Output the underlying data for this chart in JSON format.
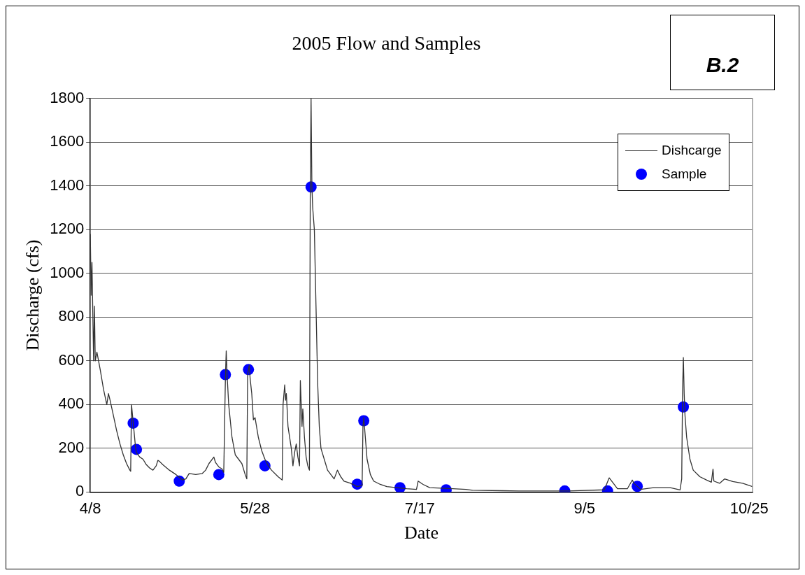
{
  "chart_data": {
    "type": "line",
    "title": "2005 Flow and Samples",
    "xlabel": "Date",
    "ylabel": "Discharge (cfs)",
    "annotations": [
      "B.2"
    ],
    "xlim": [
      "2005-04-08",
      "2005-10-26"
    ],
    "xticks": [
      {
        "value": "2005-04-08",
        "label": "4/8"
      },
      {
        "value": "2005-05-28",
        "label": "5/28"
      },
      {
        "value": "2005-07-17",
        "label": "7/17"
      },
      {
        "value": "2005-09-05",
        "label": "9/5"
      },
      {
        "value": "2005-10-25",
        "label": "10/25"
      }
    ],
    "ylim": [
      0,
      1800
    ],
    "yticks": [
      0,
      200,
      400,
      600,
      800,
      1000,
      1200,
      1400,
      1600,
      1800
    ],
    "grid": "y",
    "legend": "top right",
    "series": [
      {
        "name": "Dishcarge",
        "type": "line",
        "color": "#333333",
        "marker": "none",
        "line_style": "solid",
        "x": [
          "2005-04-08",
          "2005-04-08T06:00",
          "2005-04-08T12:00",
          "2005-04-09",
          "2005-04-09T06:00",
          "2005-04-09T12:00",
          "2005-04-10",
          "2005-04-11",
          "2005-04-12",
          "2005-04-13",
          "2005-04-13T12:00",
          "2005-04-14",
          "2005-04-15",
          "2005-04-16",
          "2005-04-17",
          "2005-04-18",
          "2005-04-19",
          "2005-04-20",
          "2005-04-20T06:00",
          "2005-04-20T12:00",
          "2005-04-21",
          "2005-04-21T18:00",
          "2005-04-22",
          "2005-04-23",
          "2005-04-24",
          "2005-04-25",
          "2005-04-26",
          "2005-04-27",
          "2005-04-28",
          "2005-04-28T12:00",
          "2005-04-29",
          "2005-04-30",
          "2005-05-02",
          "2005-05-04",
          "2005-05-06",
          "2005-05-07",
          "2005-05-08",
          "2005-05-10",
          "2005-05-12",
          "2005-05-13",
          "2005-05-14",
          "2005-05-15T12:00",
          "2005-05-16",
          "2005-05-17",
          "2005-05-18",
          "2005-05-18T12:00",
          "2005-05-18T18:00",
          "2005-05-19",
          "2005-05-19T06:00",
          "2005-05-19T12:00",
          "2005-05-20",
          "2005-05-21",
          "2005-05-22",
          "2005-05-23",
          "2005-05-24",
          "2005-05-25",
          "2005-05-25T12:00",
          "2005-05-25T18:00",
          "2005-05-26T06:00",
          "2005-05-26T12:00",
          "2005-05-27",
          "2005-05-27T12:00",
          "2005-05-28",
          "2005-05-29",
          "2005-05-30",
          "2005-05-31",
          "2005-06-01",
          "2005-06-02",
          "2005-06-04",
          "2005-06-05T06:00",
          "2005-06-05T12:00",
          "2005-06-06",
          "2005-06-06T06:00",
          "2005-06-06T12:00",
          "2005-06-07",
          "2005-06-08",
          "2005-06-08T12:00",
          "2005-06-09",
          "2005-06-09T12:00",
          "2005-06-10",
          "2005-06-10T12:00",
          "2005-06-10T18:00",
          "2005-06-11T06:00",
          "2005-06-11T12:00",
          "2005-06-12",
          "2005-06-12T12:00",
          "2005-06-13",
          "2005-06-13T12:00",
          "2005-06-13T18:00",
          "2005-06-14",
          "2005-06-14T06:00",
          "2005-06-14T12:00",
          "2005-06-15",
          "2005-06-15T12:00",
          "2005-06-16",
          "2005-06-16T12:00",
          "2005-06-17",
          "2005-06-18",
          "2005-06-19",
          "2005-06-20",
          "2005-06-21",
          "2005-06-22",
          "2005-06-23",
          "2005-06-24",
          "2005-06-26",
          "2005-06-28",
          "2005-06-29T12:00",
          "2005-06-29T18:00",
          "2005-06-30",
          "2005-07-01",
          "2005-07-02",
          "2005-07-03",
          "2005-07-05",
          "2005-07-07",
          "2005-07-10",
          "2005-07-13",
          "2005-07-16",
          "2005-07-16T12:00",
          "2005-07-18",
          "2005-07-20",
          "2005-07-27",
          "2005-07-31",
          "2005-08-02",
          "2005-08-11",
          "2005-08-16",
          "2005-08-31",
          "2005-09-11",
          "2005-09-12T12:00",
          "2005-09-14",
          "2005-09-15",
          "2005-09-18",
          "2005-09-19T12:00",
          "2005-09-20",
          "2005-09-22",
          "2005-09-26",
          "2005-10-01",
          "2005-10-04",
          "2005-10-04T12:00",
          "2005-10-04T18:00",
          "2005-10-05",
          "2005-10-05T06:00",
          "2005-10-05T12:00",
          "2005-10-06",
          "2005-10-07",
          "2005-10-08",
          "2005-10-10",
          "2005-10-12",
          "2005-10-13T12:00",
          "2005-10-14",
          "2005-10-14T06:00",
          "2005-10-16",
          "2005-10-17T12:00",
          "2005-10-20",
          "2005-10-23",
          "2005-10-26"
        ],
        "values": [
          1180,
          900,
          1050,
          600,
          850,
          600,
          640,
          560,
          470,
          400,
          450,
          420,
          350,
          280,
          220,
          170,
          130,
          100,
          95,
          400,
          320,
          200,
          180,
          160,
          150,
          125,
          110,
          100,
          120,
          145,
          140,
          125,
          100,
          80,
          55,
          60,
          85,
          80,
          85,
          100,
          130,
          160,
          135,
          115,
          105,
          90,
          300,
          520,
          645,
          540,
          400,
          250,
          170,
          150,
          130,
          80,
          60,
          540,
          580,
          520,
          450,
          330,
          340,
          250,
          190,
          150,
          120,
          100,
          70,
          55,
          400,
          490,
          420,
          450,
          300,
          200,
          120,
          180,
          220,
          160,
          120,
          510,
          300,
          380,
          250,
          160,
          120,
          100,
          1350,
          1800,
          1400,
          1300,
          1200,
          850,
          500,
          300,
          200,
          150,
          100,
          80,
          60,
          100,
          70,
          50,
          40,
          25,
          30,
          300,
          340,
          150,
          80,
          50,
          35,
          25,
          20,
          15,
          12,
          50,
          35,
          20,
          15,
          12,
          8,
          6,
          5,
          5,
          10,
          65,
          35,
          15,
          15,
          55,
          40,
          12,
          20,
          20,
          10,
          60,
          450,
          615,
          450,
          350,
          250,
          150,
          100,
          70,
          55,
          45,
          105,
          50,
          40,
          60,
          48,
          40,
          25
        ]
      },
      {
        "name": "Sample",
        "type": "scatter",
        "color": "#0000ff",
        "marker": "circle",
        "x": [
          "2005-04-21",
          "2005-04-22",
          "2005-05-05",
          "2005-05-17",
          "2005-05-19",
          "2005-05-26",
          "2005-05-31",
          "2005-06-14",
          "2005-06-28",
          "2005-06-30",
          "2005-07-11",
          "2005-07-25",
          "2005-08-30",
          "2005-09-12",
          "2005-09-21",
          "2005-10-05"
        ],
        "values": [
          315,
          195,
          50,
          80,
          537,
          560,
          120,
          1395,
          36,
          326,
          20,
          10,
          5,
          5,
          26,
          389
        ]
      }
    ]
  }
}
